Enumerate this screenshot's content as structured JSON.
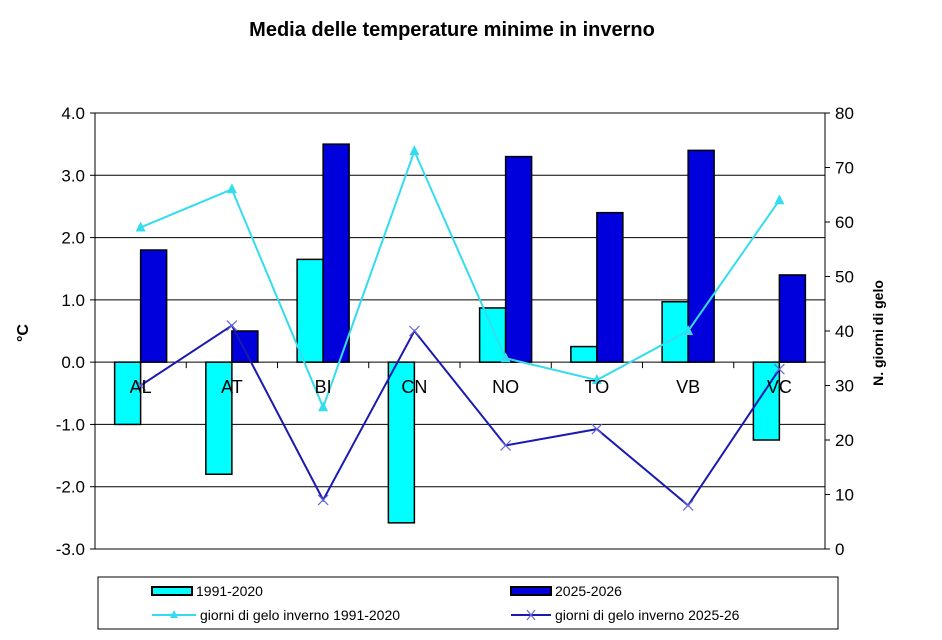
{
  "chart_data": {
    "type": "bar",
    "title": "Media delle temperature minime in inverno",
    "categories": [
      "AL",
      "AT",
      "BI",
      "CN",
      "NO",
      "TO",
      "VB",
      "VC"
    ],
    "ylabel": "°C",
    "y2label": "N. giorni di gelo",
    "ylim": [
      -3,
      4
    ],
    "y2lim": [
      0,
      80
    ],
    "yticks": [
      "4.0",
      "3.0",
      "2.0",
      "1.0",
      "0.0",
      "-1.0",
      "-2.0",
      "-3.0"
    ],
    "y2ticks": [
      "80",
      "70",
      "60",
      "50",
      "40",
      "30",
      "20",
      "10",
      "0"
    ],
    "grid": true,
    "legend_position": "bottom",
    "series": [
      {
        "name": "1991-2020",
        "type": "bar",
        "axis": "left",
        "color": "#00FFFF",
        "values": [
          -1.0,
          -1.8,
          1.65,
          -2.58,
          0.87,
          0.25,
          0.97,
          -1.25
        ]
      },
      {
        "name": "2025-2026",
        "type": "bar",
        "axis": "left",
        "color": "#0000DD",
        "values": [
          1.8,
          0.5,
          3.5,
          null,
          3.3,
          2.4,
          3.4,
          1.4
        ]
      },
      {
        "name": "giorni di gelo inverno 1991-2020",
        "type": "line",
        "marker": "triangle",
        "axis": "right",
        "color": "#33DDEE",
        "values": [
          59,
          66,
          26,
          73,
          35,
          31,
          40,
          64
        ]
      },
      {
        "name": "giorni di gelo inverno 2025-26",
        "type": "line",
        "marker": "x",
        "axis": "right",
        "color": "#1A1AB0",
        "values": [
          30,
          41,
          9,
          40,
          19,
          22,
          8,
          33
        ]
      }
    ]
  }
}
